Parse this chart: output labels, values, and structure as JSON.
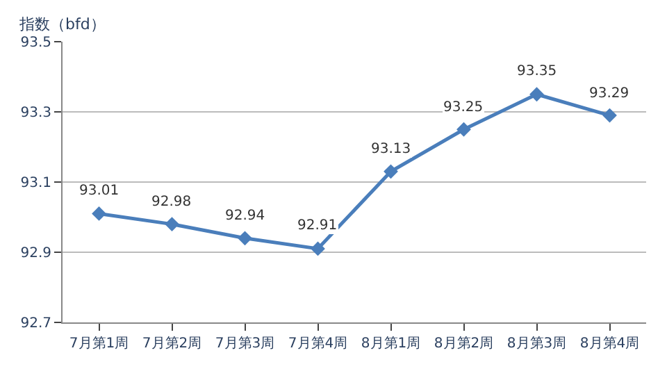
{
  "chart_data": {
    "type": "line",
    "ylabel": "指数（bfd）",
    "categories": [
      "7月第1周",
      "7月第2周",
      "7月第3周",
      "7月第4周",
      "8月第1周",
      "8月第2周",
      "8月第3周",
      "8月第4周"
    ],
    "series": [
      {
        "color": "#4a7ebb",
        "values": [
          93.01,
          92.98,
          92.94,
          92.91,
          93.13,
          93.25,
          93.35,
          93.29
        ]
      }
    ],
    "ylim": [
      92.7,
      93.5
    ],
    "yticks": [
      92.7,
      92.9,
      93.1,
      93.3,
      93.5
    ],
    "data_labels": true,
    "grid": "y",
    "marker": "diamond",
    "line_style": "solid",
    "legend": false
  }
}
